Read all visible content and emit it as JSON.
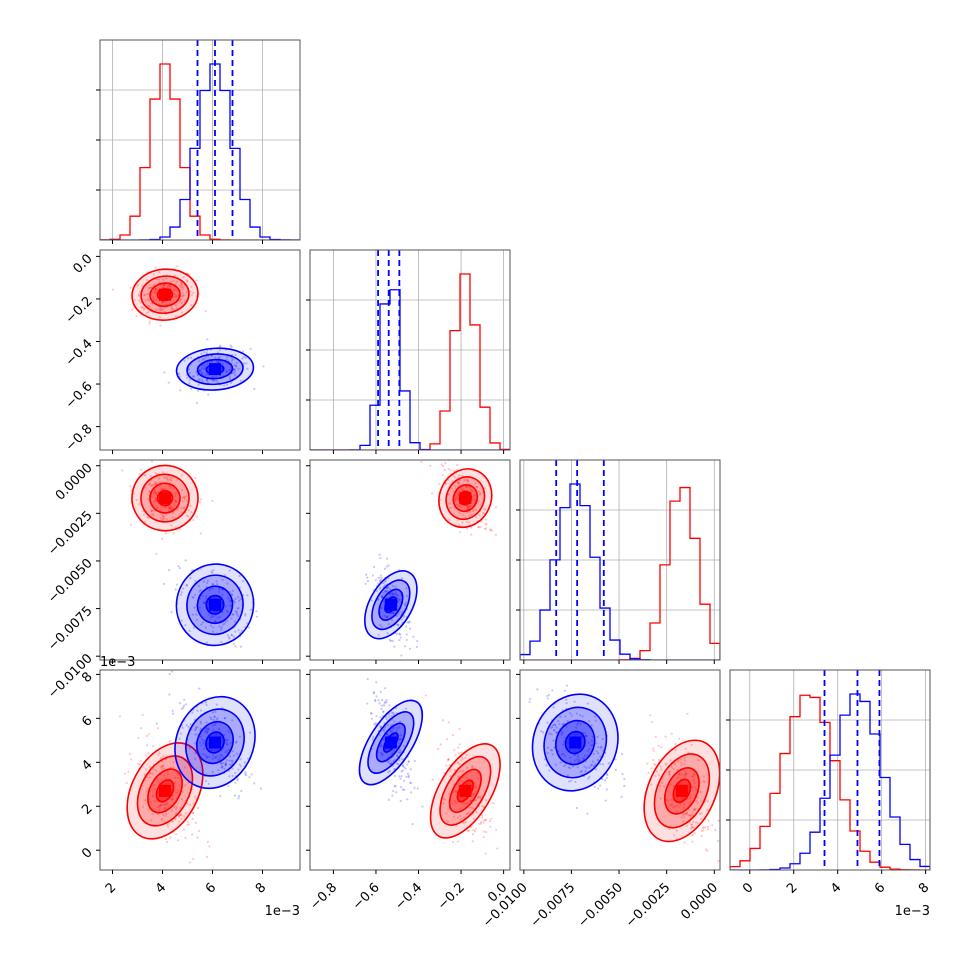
{
  "chart_data": {
    "type": "corner",
    "grid": true,
    "legend": "none",
    "colors": {
      "series_a": "#ff0000",
      "series_b": "#0000ff",
      "quantile_lines": "#0000ff"
    },
    "parameters": [
      {
        "ticks": [
          "2",
          "4",
          "6",
          "8"
        ],
        "tick_values": [
          0.002,
          0.004,
          0.006,
          0.008
        ],
        "range": [
          0.0015,
          0.0095
        ],
        "offset_label": "1e−3"
      },
      {
        "ticks": [
          "−0.8",
          "−0.6",
          "−0.4",
          "−0.2",
          "0.0"
        ],
        "tick_values": [
          -0.8,
          -0.6,
          -0.4,
          -0.2,
          0.0
        ],
        "range": [
          -0.91,
          0.03
        ],
        "offset_label": ""
      },
      {
        "ticks": [
          "−0.0100",
          "−0.0075",
          "−0.0050",
          "−0.0025",
          "0.0000"
        ],
        "tick_values": [
          -0.01,
          -0.0075,
          -0.005,
          -0.0025,
          0.0
        ],
        "range": [
          -0.0102,
          0.0003
        ],
        "offset_label": ""
      },
      {
        "ticks": [
          "0",
          "2",
          "4",
          "6",
          "8"
        ],
        "tick_values": [
          0.0,
          0.002,
          0.004,
          0.006,
          0.008
        ],
        "range": [
          -0.0009,
          0.0082
        ],
        "offset_label": "1e−3"
      }
    ],
    "series": [
      {
        "color": "red",
        "means": [
          0.0041,
          -0.18,
          -0.0017,
          0.0027
        ],
        "stds": [
          0.0006,
          0.055,
          0.0008,
          0.0012
        ]
      },
      {
        "color": "blue",
        "means": [
          0.0061,
          -0.53,
          -0.0073,
          0.0049
        ],
        "stds": [
          0.0007,
          0.045,
          0.001,
          0.0011
        ]
      }
    ],
    "quantile_lines": [
      [
        0.0054,
        0.0061,
        0.0068
      ],
      [
        -0.59,
        -0.54,
        -0.49
      ],
      [
        -0.0083,
        -0.0072,
        -0.0058
      ],
      [
        0.0034,
        0.0049,
        0.0059
      ]
    ]
  }
}
